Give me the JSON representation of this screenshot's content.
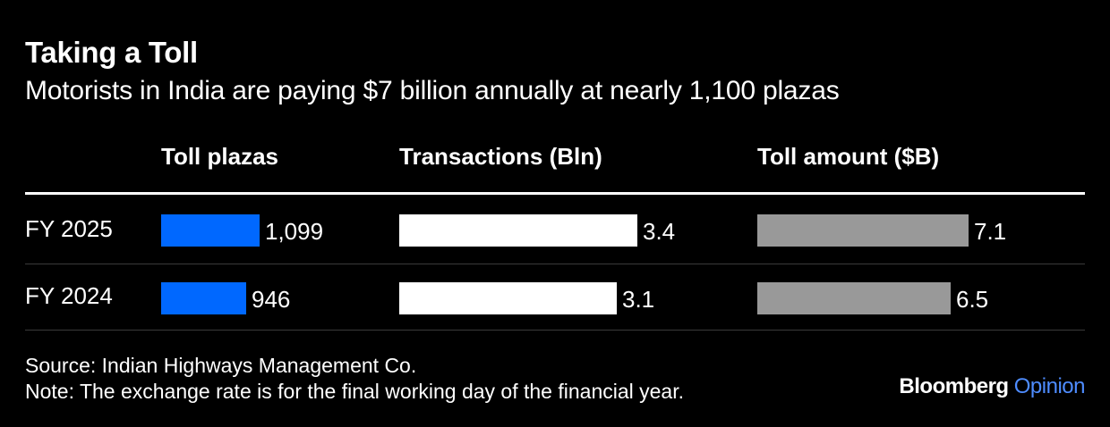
{
  "title": "Taking a Toll",
  "subtitle": "Motorists in India are paying $7 billion annually at nearly 1,100 plazas",
  "chart_data": {
    "type": "bar",
    "orientation": "horizontal",
    "categories": [
      "FY 2025",
      "FY 2024"
    ],
    "series": [
      {
        "name": "Toll plazas",
        "values": [
          1099,
          946
        ],
        "labels": [
          "1,099",
          "946"
        ],
        "color": "#0068ff"
      },
      {
        "name": "Transactions (Bln)",
        "values": [
          3.4,
          3.1
        ],
        "labels": [
          "3.4",
          "3.1"
        ],
        "color": "#ffffff"
      },
      {
        "name": "Toll amount ($B)",
        "values": [
          7.1,
          6.5
        ],
        "labels": [
          "7.1",
          "6.5"
        ],
        "color": "#999999"
      }
    ]
  },
  "footer": {
    "source": "Source: Indian Highways Management Co.",
    "note": "Note: The exchange rate is for the final working day of the financial year."
  },
  "brand": {
    "name": "Bloomberg",
    "section": "Opinion",
    "section_color": "#4e8cff"
  }
}
